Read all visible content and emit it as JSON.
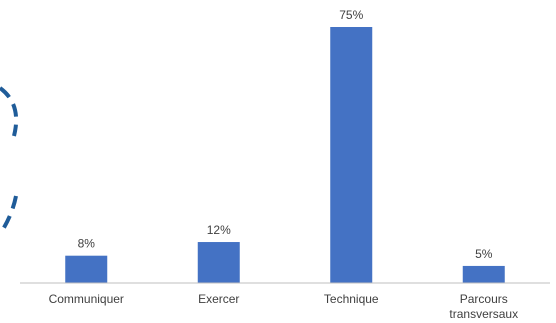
{
  "colors": {
    "bar": "#4472C4",
    "axis": "#bfbfbf",
    "text": "#404040",
    "decoration": "#1F5C99"
  },
  "chart_data": {
    "type": "bar",
    "categories": [
      "Communiquer",
      "Exercer",
      "Technique",
      "Parcours transversaux"
    ],
    "category_lines": [
      [
        "Communiquer"
      ],
      [
        "Exercer"
      ],
      [
        "Technique"
      ],
      [
        "Parcours",
        "transversaux"
      ]
    ],
    "values": [
      8,
      12,
      75,
      5
    ],
    "value_labels": [
      "8%",
      "12%",
      "75%",
      "5%"
    ],
    "unit": "%",
    "ylim": [
      0,
      80
    ],
    "grid": false,
    "legend": "none",
    "title": "",
    "xlabel": "",
    "ylabel": ""
  }
}
